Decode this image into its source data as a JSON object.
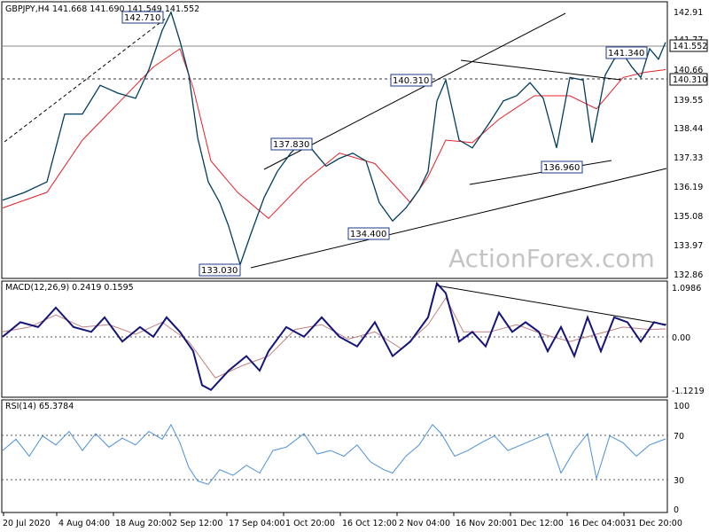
{
  "header": {
    "main": "GBPJPY,H4  141.668 141.690 141.549 141.552",
    "macd": "MACD(12,26,9) 0.2419 0.1595",
    "rsi": "RSI(14) 65.3784"
  },
  "watermark": "ActionForex.com",
  "colors": {
    "price": "#003d5c",
    "ma": "#e8202a",
    "macd": "#14147a",
    "signal": "#c08080",
    "rsi": "#4a90d9",
    "trendline": "#000000",
    "grid_dotted": "#555555"
  },
  "chart_data": [
    {
      "type": "line",
      "pane": "price",
      "title": "GBPJPY,H4",
      "ylim": [
        132.5,
        143.1
      ],
      "x_ticks": [
        "20 Jul 2020",
        "4 Aug 04:00",
        "18 Aug 20:00",
        "2 Sep 12:00",
        "17 Sep 04:00",
        "1 Oct 20:00",
        "16 Oct 12:00",
        "2 Nov 04:00",
        "16 Nov 20:00",
        "1 Dec 12:00",
        "16 Dec 04:00",
        "31 Dec 20:00"
      ],
      "y_ticks": [
        142.91,
        141.77,
        140.66,
        139.55,
        138.44,
        137.33,
        136.19,
        135.08,
        133.97,
        132.86
      ],
      "series": [
        {
          "key": "close",
          "x": [
            0,
            25,
            50,
            70,
            90,
            110,
            130,
            150,
            165,
            180,
            190,
            200,
            210,
            220,
            232,
            245,
            255,
            268,
            280,
            295,
            310,
            325,
            340,
            355,
            365,
            380,
            395,
            410,
            425,
            440,
            455,
            470,
            480,
            490,
            500,
            515,
            530,
            550,
            565,
            580,
            595,
            610,
            625,
            640,
            655,
            665,
            680,
            690,
            700,
            710,
            720,
            730,
            740,
            748
          ],
          "values": [
            135.5,
            135.8,
            136.2,
            138.8,
            138.8,
            139.9,
            139.6,
            139.4,
            140.5,
            142.0,
            142.7,
            141.6,
            140.3,
            137.9,
            136.2,
            135.4,
            134.5,
            133.03,
            134.2,
            135.6,
            136.6,
            137.3,
            137.83,
            137.2,
            136.8,
            137.1,
            137.3,
            137.0,
            135.4,
            134.7,
            135.2,
            135.9,
            136.6,
            139.3,
            140.1,
            137.8,
            137.5,
            138.5,
            139.3,
            139.5,
            140.0,
            139.4,
            137.5,
            140.2,
            140.1,
            137.7,
            140.3,
            140.9,
            141.1,
            140.6,
            140.2,
            141.3,
            140.9,
            141.552
          ]
        },
        {
          "key": "ma",
          "x": [
            0,
            50,
            90,
            130,
            170,
            200,
            215,
            235,
            265,
            300,
            340,
            380,
            420,
            460,
            480,
            500,
            530,
            560,
            600,
            640,
            670,
            700,
            725,
            748
          ],
          "values": [
            135.2,
            135.8,
            137.8,
            139.2,
            140.6,
            141.3,
            139.8,
            137.0,
            135.8,
            134.8,
            136.2,
            137.3,
            136.9,
            135.4,
            136.4,
            137.8,
            137.7,
            138.6,
            139.5,
            139.5,
            139.0,
            140.2,
            140.4,
            140.5
          ]
        }
      ],
      "levels": [
        141.552,
        140.31
      ],
      "annotations": [
        "142.710",
        "141.340",
        "140.310",
        "137.830",
        "136.960",
        "134.400",
        "133.030"
      ],
      "price_tags": [
        "141.552",
        "140.310"
      ]
    },
    {
      "type": "line",
      "pane": "macd",
      "title": "MACD(12,26,9)",
      "ylim": [
        -1.25,
        1.15
      ],
      "y_ticks": [
        "1.0986",
        "0.00",
        "-1.1219"
      ],
      "series": [
        {
          "key": "macd",
          "x": [
            0,
            20,
            40,
            60,
            80,
            100,
            115,
            135,
            155,
            170,
            185,
            200,
            215,
            225,
            235,
            255,
            275,
            290,
            300,
            320,
            340,
            360,
            380,
            400,
            420,
            440,
            460,
            480,
            490,
            500,
            515,
            530,
            545,
            560,
            575,
            590,
            605,
            615,
            630,
            645,
            660,
            675,
            690,
            705,
            720,
            735,
            748
          ],
          "values": [
            0.0,
            0.3,
            0.2,
            0.6,
            0.2,
            0.1,
            0.4,
            -0.1,
            0.2,
            0.0,
            0.4,
            0.1,
            -0.3,
            -1.0,
            -1.1,
            -0.7,
            -0.4,
            -0.7,
            -0.3,
            0.2,
            0.0,
            0.4,
            0.0,
            -0.2,
            0.3,
            -0.4,
            -0.1,
            0.4,
            1.1,
            0.9,
            -0.1,
            0.1,
            -0.2,
            0.5,
            0.1,
            0.3,
            0.1,
            -0.3,
            0.2,
            -0.4,
            0.4,
            -0.3,
            0.4,
            0.3,
            -0.1,
            0.3,
            0.24
          ]
        },
        {
          "key": "signal",
          "x": [
            0,
            30,
            60,
            90,
            120,
            150,
            180,
            210,
            240,
            270,
            300,
            330,
            360,
            390,
            420,
            450,
            480,
            500,
            520,
            550,
            580,
            610,
            640,
            670,
            700,
            730,
            748
          ],
          "values": [
            0.1,
            0.2,
            0.45,
            0.2,
            0.25,
            0.05,
            0.3,
            -0.1,
            -0.85,
            -0.6,
            -0.4,
            0.15,
            0.25,
            -0.05,
            0.1,
            -0.25,
            0.25,
            0.8,
            0.1,
            0.1,
            0.25,
            0.05,
            -0.1,
            0.05,
            0.2,
            0.15,
            0.16
          ]
        }
      ]
    },
    {
      "type": "line",
      "pane": "rsi",
      "title": "RSI(14)",
      "ylim": [
        0,
        100
      ],
      "y_ticks": [
        "100",
        "70",
        "30",
        "0"
      ],
      "series": [
        {
          "key": "rsi",
          "x": [
            0,
            15,
            30,
            45,
            60,
            75,
            90,
            105,
            120,
            135,
            150,
            165,
            180,
            190,
            200,
            210,
            220,
            232,
            245,
            260,
            275,
            290,
            305,
            320,
            340,
            355,
            370,
            385,
            400,
            415,
            430,
            440,
            455,
            470,
            485,
            495,
            510,
            525,
            540,
            555,
            570,
            585,
            600,
            615,
            630,
            645,
            660,
            670,
            685,
            700,
            715,
            730,
            748
          ],
          "values": [
            55,
            65,
            50,
            68,
            60,
            72,
            55,
            70,
            58,
            66,
            60,
            72,
            65,
            78,
            62,
            40,
            28,
            25,
            38,
            33,
            42,
            35,
            55,
            58,
            70,
            52,
            55,
            50,
            60,
            45,
            38,
            35,
            50,
            60,
            78,
            70,
            50,
            55,
            62,
            68,
            55,
            60,
            65,
            70,
            35,
            55,
            70,
            30,
            68,
            62,
            50,
            60,
            65.38
          ]
        }
      ]
    }
  ]
}
